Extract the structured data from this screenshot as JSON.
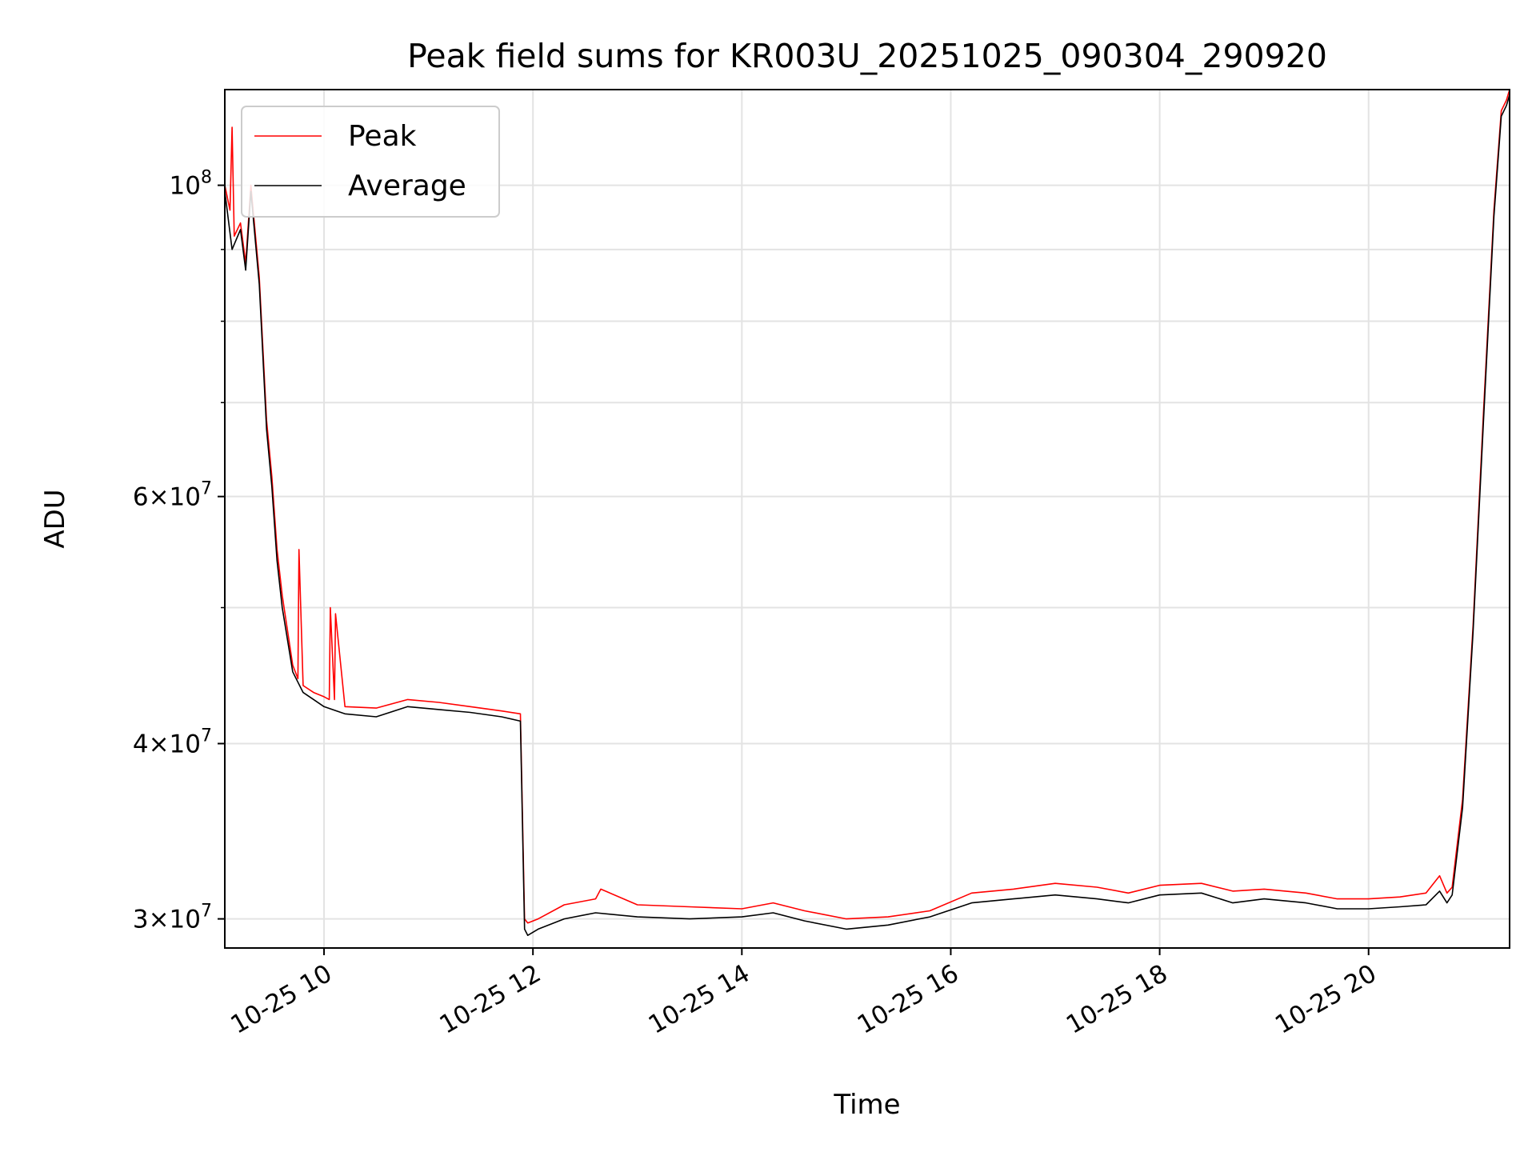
{
  "chart_data": {
    "type": "line",
    "title": "Peak field sums for KR003U_20251025_090304_290920",
    "xlabel": "Time",
    "ylabel": "ADU",
    "yscale": "log",
    "xlim": [
      9.05,
      21.35
    ],
    "ylim": [
      28600000,
      117000000
    ],
    "grid": true,
    "x_unit": "hours on 2025-10-25",
    "x_ticks": [
      {
        "value": 10,
        "label": "10-25 10"
      },
      {
        "value": 12,
        "label": "10-25 12"
      },
      {
        "value": 14,
        "label": "10-25 14"
      },
      {
        "value": 16,
        "label": "10-25 16"
      },
      {
        "value": 18,
        "label": "10-25 18"
      },
      {
        "value": 20,
        "label": "10-25 20"
      }
    ],
    "y_major_ticks": [
      {
        "value": 100000000,
        "base": "10",
        "exp": "8"
      },
      {
        "value": 60000000,
        "mant": "6",
        "base": "10",
        "exp": "7"
      },
      {
        "value": 40000000,
        "mant": "4",
        "base": "10",
        "exp": "7"
      },
      {
        "value": 30000000,
        "mant": "3",
        "base": "10",
        "exp": "7"
      }
    ],
    "y_minor_gridlines": [
      50000000,
      70000000,
      80000000,
      90000000
    ],
    "legend": {
      "position": "upper-left",
      "entries": [
        "Peak",
        "Average"
      ]
    },
    "series": [
      {
        "name": "Average",
        "color": "#000000",
        "x": [
          9.05,
          9.12,
          9.2,
          9.25,
          9.3,
          9.38,
          9.45,
          9.5,
          9.55,
          9.6,
          9.7,
          9.8,
          9.9,
          10.0,
          10.2,
          10.5,
          10.8,
          11.1,
          11.4,
          11.7,
          11.88,
          11.92,
          11.95,
          12.05,
          12.3,
          12.6,
          13.0,
          13.5,
          14.0,
          14.3,
          14.6,
          15.0,
          15.4,
          15.8,
          16.2,
          16.6,
          17.0,
          17.4,
          17.7,
          18.0,
          18.4,
          18.7,
          19.0,
          19.4,
          19.7,
          20.0,
          20.3,
          20.55,
          20.68,
          20.75,
          20.8,
          20.9,
          21.0,
          21.1,
          21.2,
          21.27,
          21.32,
          21.35
        ],
        "y": [
          99000000,
          90000000,
          93000000,
          87000000,
          99000000,
          85000000,
          67000000,
          61000000,
          54000000,
          50000000,
          45000000,
          43500000,
          43000000,
          42500000,
          42000000,
          41800000,
          42500000,
          42300000,
          42100000,
          41800000,
          41500000,
          29500000,
          29200000,
          29500000,
          30000000,
          30300000,
          30100000,
          30000000,
          30100000,
          30300000,
          29900000,
          29500000,
          29700000,
          30100000,
          30800000,
          31000000,
          31200000,
          31000000,
          30800000,
          31200000,
          31300000,
          30800000,
          31000000,
          30800000,
          30500000,
          30500000,
          30600000,
          30700000,
          31400000,
          30800000,
          31200000,
          36000000,
          48000000,
          68000000,
          95000000,
          112000000,
          114000000,
          116000000
        ]
      },
      {
        "name": "Peak",
        "color": "#ff0000",
        "x": [
          9.05,
          9.1,
          9.12,
          9.14,
          9.2,
          9.25,
          9.3,
          9.38,
          9.45,
          9.5,
          9.55,
          9.6,
          9.7,
          9.75,
          9.76,
          9.8,
          9.9,
          10.0,
          10.05,
          10.06,
          10.1,
          10.11,
          10.2,
          10.5,
          10.8,
          11.1,
          11.4,
          11.7,
          11.88,
          11.92,
          11.95,
          12.05,
          12.3,
          12.6,
          12.65,
          13.0,
          13.5,
          14.0,
          14.3,
          14.6,
          15.0,
          15.4,
          15.8,
          16.2,
          16.6,
          17.0,
          17.4,
          17.7,
          18.0,
          18.4,
          18.7,
          19.0,
          19.4,
          19.7,
          20.0,
          20.3,
          20.55,
          20.68,
          20.75,
          20.8,
          20.9,
          21.0,
          21.1,
          21.2,
          21.27,
          21.32,
          21.35
        ],
        "y": [
          100000000,
          96000000,
          110000000,
          92000000,
          94000000,
          88000000,
          100000000,
          86000000,
          68000000,
          62000000,
          55000000,
          51000000,
          45500000,
          44500000,
          55000000,
          44000000,
          43500000,
          43200000,
          43000000,
          50000000,
          43000000,
          49500000,
          42500000,
          42400000,
          43000000,
          42800000,
          42500000,
          42200000,
          42000000,
          30000000,
          29800000,
          30000000,
          30700000,
          31000000,
          31500000,
          30700000,
          30600000,
          30500000,
          30800000,
          30400000,
          30000000,
          30100000,
          30400000,
          31300000,
          31500000,
          31800000,
          31600000,
          31300000,
          31700000,
          31800000,
          31400000,
          31500000,
          31300000,
          31000000,
          31000000,
          31100000,
          31300000,
          32200000,
          31300000,
          31600000,
          36500000,
          48500000,
          69000000,
          96000000,
          113000000,
          115000000,
          117000000
        ]
      }
    ]
  }
}
